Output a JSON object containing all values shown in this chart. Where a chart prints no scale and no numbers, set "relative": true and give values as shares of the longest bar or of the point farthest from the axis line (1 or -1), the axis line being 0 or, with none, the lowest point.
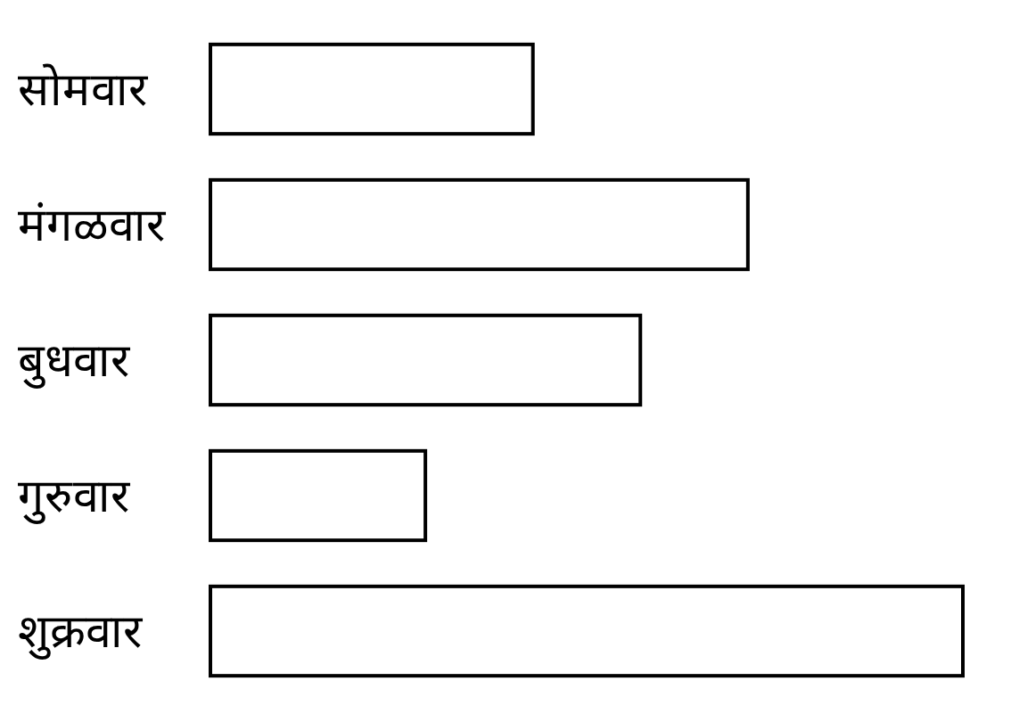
{
  "chart_data": {
    "type": "bar",
    "orientation": "horizontal",
    "relative": true,
    "categories": [
      "सोमवार",
      "मंगळवार",
      "बुधवार",
      "गुरुवार",
      "शुक्रवार"
    ],
    "values": [
      0.4286,
      0.7143,
      0.5714,
      0.2857,
      1
    ],
    "color": "#ffffff"
  }
}
